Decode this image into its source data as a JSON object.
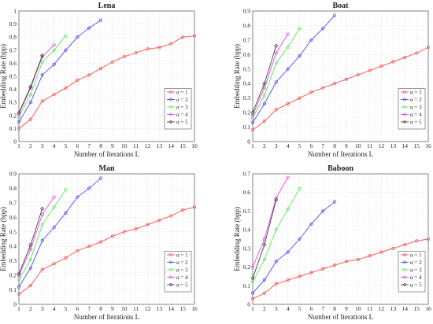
{
  "chart_data": [
    {
      "type": "line",
      "title": "Lena",
      "xlabel": "Number of Iterations L",
      "ylabel": "Embedding Rate (bpp)",
      "xlim": [
        1,
        16
      ],
      "ylim": [
        0,
        1
      ],
      "xticks": [
        1,
        2,
        3,
        4,
        5,
        6,
        7,
        8,
        9,
        10,
        11,
        12,
        13,
        14,
        15,
        16
      ],
      "yticks": [
        0,
        0.1,
        0.2,
        0.3,
        0.4,
        0.5,
        0.6,
        0.7,
        0.8,
        0.9,
        1
      ],
      "grid": true,
      "legend_position": "center-right",
      "series": [
        {
          "name": "α = 1",
          "color": "#ff4c4c",
          "marker": "o",
          "x": [
            1,
            2,
            3,
            4,
            5,
            6,
            7,
            8,
            9,
            10,
            11,
            12,
            13,
            14,
            15,
            16
          ],
          "values": [
            0.1,
            0.17,
            0.31,
            0.36,
            0.41,
            0.47,
            0.51,
            0.56,
            0.61,
            0.65,
            0.68,
            0.71,
            0.72,
            0.75,
            0.8,
            0.81
          ]
        },
        {
          "name": "α = 2",
          "color": "#4c4cff",
          "marker": "o",
          "x": [
            1,
            2,
            3,
            4,
            5,
            6,
            7,
            8
          ],
          "values": [
            0.15,
            0.3,
            0.51,
            0.59,
            0.7,
            0.8,
            0.87,
            0.93
          ]
        },
        {
          "name": "α = 3",
          "color": "#55ee55",
          "marker": "o",
          "x": [
            1,
            2,
            3,
            4,
            5
          ],
          "values": [
            0.19,
            0.36,
            0.61,
            0.7,
            0.81
          ]
        },
        {
          "name": "α = 4",
          "color": "#ee44ee",
          "marker": "o",
          "x": [
            1,
            2,
            3,
            4
          ],
          "values": [
            0.21,
            0.41,
            0.65,
            0.74
          ]
        },
        {
          "name": "α = 5",
          "color": "#444444",
          "marker": "diamond",
          "x": [
            1,
            2,
            3
          ],
          "values": [
            0.22,
            0.42,
            0.66
          ]
        }
      ]
    },
    {
      "type": "line",
      "title": "Boat",
      "xlabel": "Number of Iterations L",
      "ylabel": "Embedding Rate (bpp)",
      "xlim": [
        1,
        16
      ],
      "ylim": [
        0,
        0.9
      ],
      "xticks": [
        1,
        2,
        3,
        4,
        5,
        6,
        7,
        8,
        9,
        10,
        11,
        12,
        13,
        14,
        15,
        16
      ],
      "yticks": [
        0,
        0.1,
        0.2,
        0.3,
        0.4,
        0.5,
        0.6,
        0.7,
        0.8,
        0.9
      ],
      "grid": true,
      "legend_position": "center-right",
      "series": [
        {
          "name": "α = 1",
          "color": "#ff4c4c",
          "marker": "o",
          "x": [
            1,
            2,
            3,
            4,
            5,
            6,
            7,
            8,
            9,
            10,
            11,
            12,
            13,
            14,
            15,
            16
          ],
          "values": [
            0.08,
            0.14,
            0.22,
            0.26,
            0.3,
            0.34,
            0.37,
            0.4,
            0.43,
            0.46,
            0.49,
            0.52,
            0.55,
            0.58,
            0.61,
            0.65
          ]
        },
        {
          "name": "α = 2",
          "color": "#4c4cff",
          "marker": "o",
          "x": [
            1,
            2,
            3,
            4,
            5,
            6,
            7,
            8
          ],
          "values": [
            0.13,
            0.26,
            0.41,
            0.5,
            0.59,
            0.7,
            0.78,
            0.87
          ]
        },
        {
          "name": "α = 3",
          "color": "#55ee55",
          "marker": "o",
          "x": [
            1,
            2,
            3,
            4,
            5
          ],
          "values": [
            0.16,
            0.32,
            0.54,
            0.65,
            0.78
          ]
        },
        {
          "name": "α = 4",
          "color": "#ee44ee",
          "marker": "o",
          "x": [
            1,
            2,
            3,
            4
          ],
          "values": [
            0.18,
            0.37,
            0.61,
            0.74
          ]
        },
        {
          "name": "α = 5",
          "color": "#444444",
          "marker": "diamond",
          "x": [
            1,
            2,
            3
          ],
          "values": [
            0.2,
            0.4,
            0.66
          ]
        }
      ]
    },
    {
      "type": "line",
      "title": "Man",
      "xlabel": "Number of Iterations L",
      "ylabel": "Embedding Rate (bpp)",
      "xlim": [
        1,
        16
      ],
      "ylim": [
        0,
        0.9
      ],
      "xticks": [
        1,
        2,
        3,
        4,
        5,
        6,
        7,
        8,
        9,
        10,
        11,
        12,
        13,
        14,
        15,
        16
      ],
      "yticks": [
        0,
        0.1,
        0.2,
        0.3,
        0.4,
        0.5,
        0.6,
        0.7,
        0.8,
        0.9
      ],
      "grid": true,
      "legend_position": "center-right",
      "series": [
        {
          "name": "α = 1",
          "color": "#ff4c4c",
          "marker": "o",
          "x": [
            1,
            2,
            3,
            4,
            5,
            6,
            7,
            8,
            9,
            10,
            11,
            12,
            13,
            14,
            15,
            16
          ],
          "values": [
            0.07,
            0.13,
            0.24,
            0.28,
            0.32,
            0.37,
            0.4,
            0.43,
            0.47,
            0.5,
            0.52,
            0.55,
            0.58,
            0.61,
            0.65,
            0.67
          ]
        },
        {
          "name": "α = 2",
          "color": "#4c4cff",
          "marker": "o",
          "x": [
            1,
            2,
            3,
            4,
            5,
            6,
            7,
            8
          ],
          "values": [
            0.12,
            0.25,
            0.44,
            0.53,
            0.63,
            0.74,
            0.8,
            0.87
          ]
        },
        {
          "name": "α = 3",
          "color": "#55ee55",
          "marker": "o",
          "x": [
            1,
            2,
            3,
            4,
            5
          ],
          "values": [
            0.17,
            0.31,
            0.55,
            0.67,
            0.79
          ]
        },
        {
          "name": "α = 4",
          "color": "#ee44ee",
          "marker": "o",
          "x": [
            1,
            2,
            3,
            4
          ],
          "values": [
            0.2,
            0.38,
            0.62,
            0.74
          ]
        },
        {
          "name": "α = 5",
          "color": "#444444",
          "marker": "diamond",
          "x": [
            1,
            2,
            3
          ],
          "values": [
            0.21,
            0.41,
            0.66
          ]
        }
      ]
    },
    {
      "type": "line",
      "title": "Baboon",
      "xlabel": "Number of Iterations L",
      "ylabel": "Embedding Rate (bpp)",
      "xlim": [
        1,
        16
      ],
      "ylim": [
        0,
        0.7
      ],
      "xticks": [
        1,
        2,
        3,
        4,
        5,
        6,
        7,
        8,
        9,
        10,
        11,
        12,
        13,
        14,
        15,
        16
      ],
      "yticks": [
        0,
        0.1,
        0.2,
        0.3,
        0.4,
        0.5,
        0.6,
        0.7
      ],
      "grid": true,
      "legend_position": "center-right",
      "series": [
        {
          "name": "α = 1",
          "color": "#ff4c4c",
          "marker": "o",
          "x": [
            1,
            2,
            3,
            4,
            5,
            6,
            7,
            8,
            9,
            10,
            11,
            12,
            13,
            14,
            15,
            16
          ],
          "values": [
            0.03,
            0.06,
            0.11,
            0.13,
            0.15,
            0.17,
            0.19,
            0.21,
            0.23,
            0.24,
            0.26,
            0.28,
            0.3,
            0.32,
            0.34,
            0.35
          ]
        },
        {
          "name": "α = 2",
          "color": "#4c4cff",
          "marker": "o",
          "x": [
            1,
            2,
            3,
            4,
            5,
            6,
            7,
            8
          ],
          "values": [
            0.06,
            0.13,
            0.23,
            0.28,
            0.35,
            0.43,
            0.5,
            0.55
          ]
        },
        {
          "name": "α = 3",
          "color": "#55ee55",
          "marker": "o",
          "x": [
            1,
            2,
            3,
            4,
            5
          ],
          "values": [
            0.12,
            0.24,
            0.4,
            0.51,
            0.62
          ]
        },
        {
          "name": "α = 4",
          "color": "#ee44ee",
          "marker": "o",
          "x": [
            1,
            2,
            3,
            4
          ],
          "values": [
            0.2,
            0.35,
            0.57,
            0.68
          ]
        },
        {
          "name": "α = 5",
          "color": "#444444",
          "marker": "diamond",
          "x": [
            1,
            2,
            3
          ],
          "values": [
            0.14,
            0.32,
            0.56
          ]
        }
      ]
    }
  ]
}
